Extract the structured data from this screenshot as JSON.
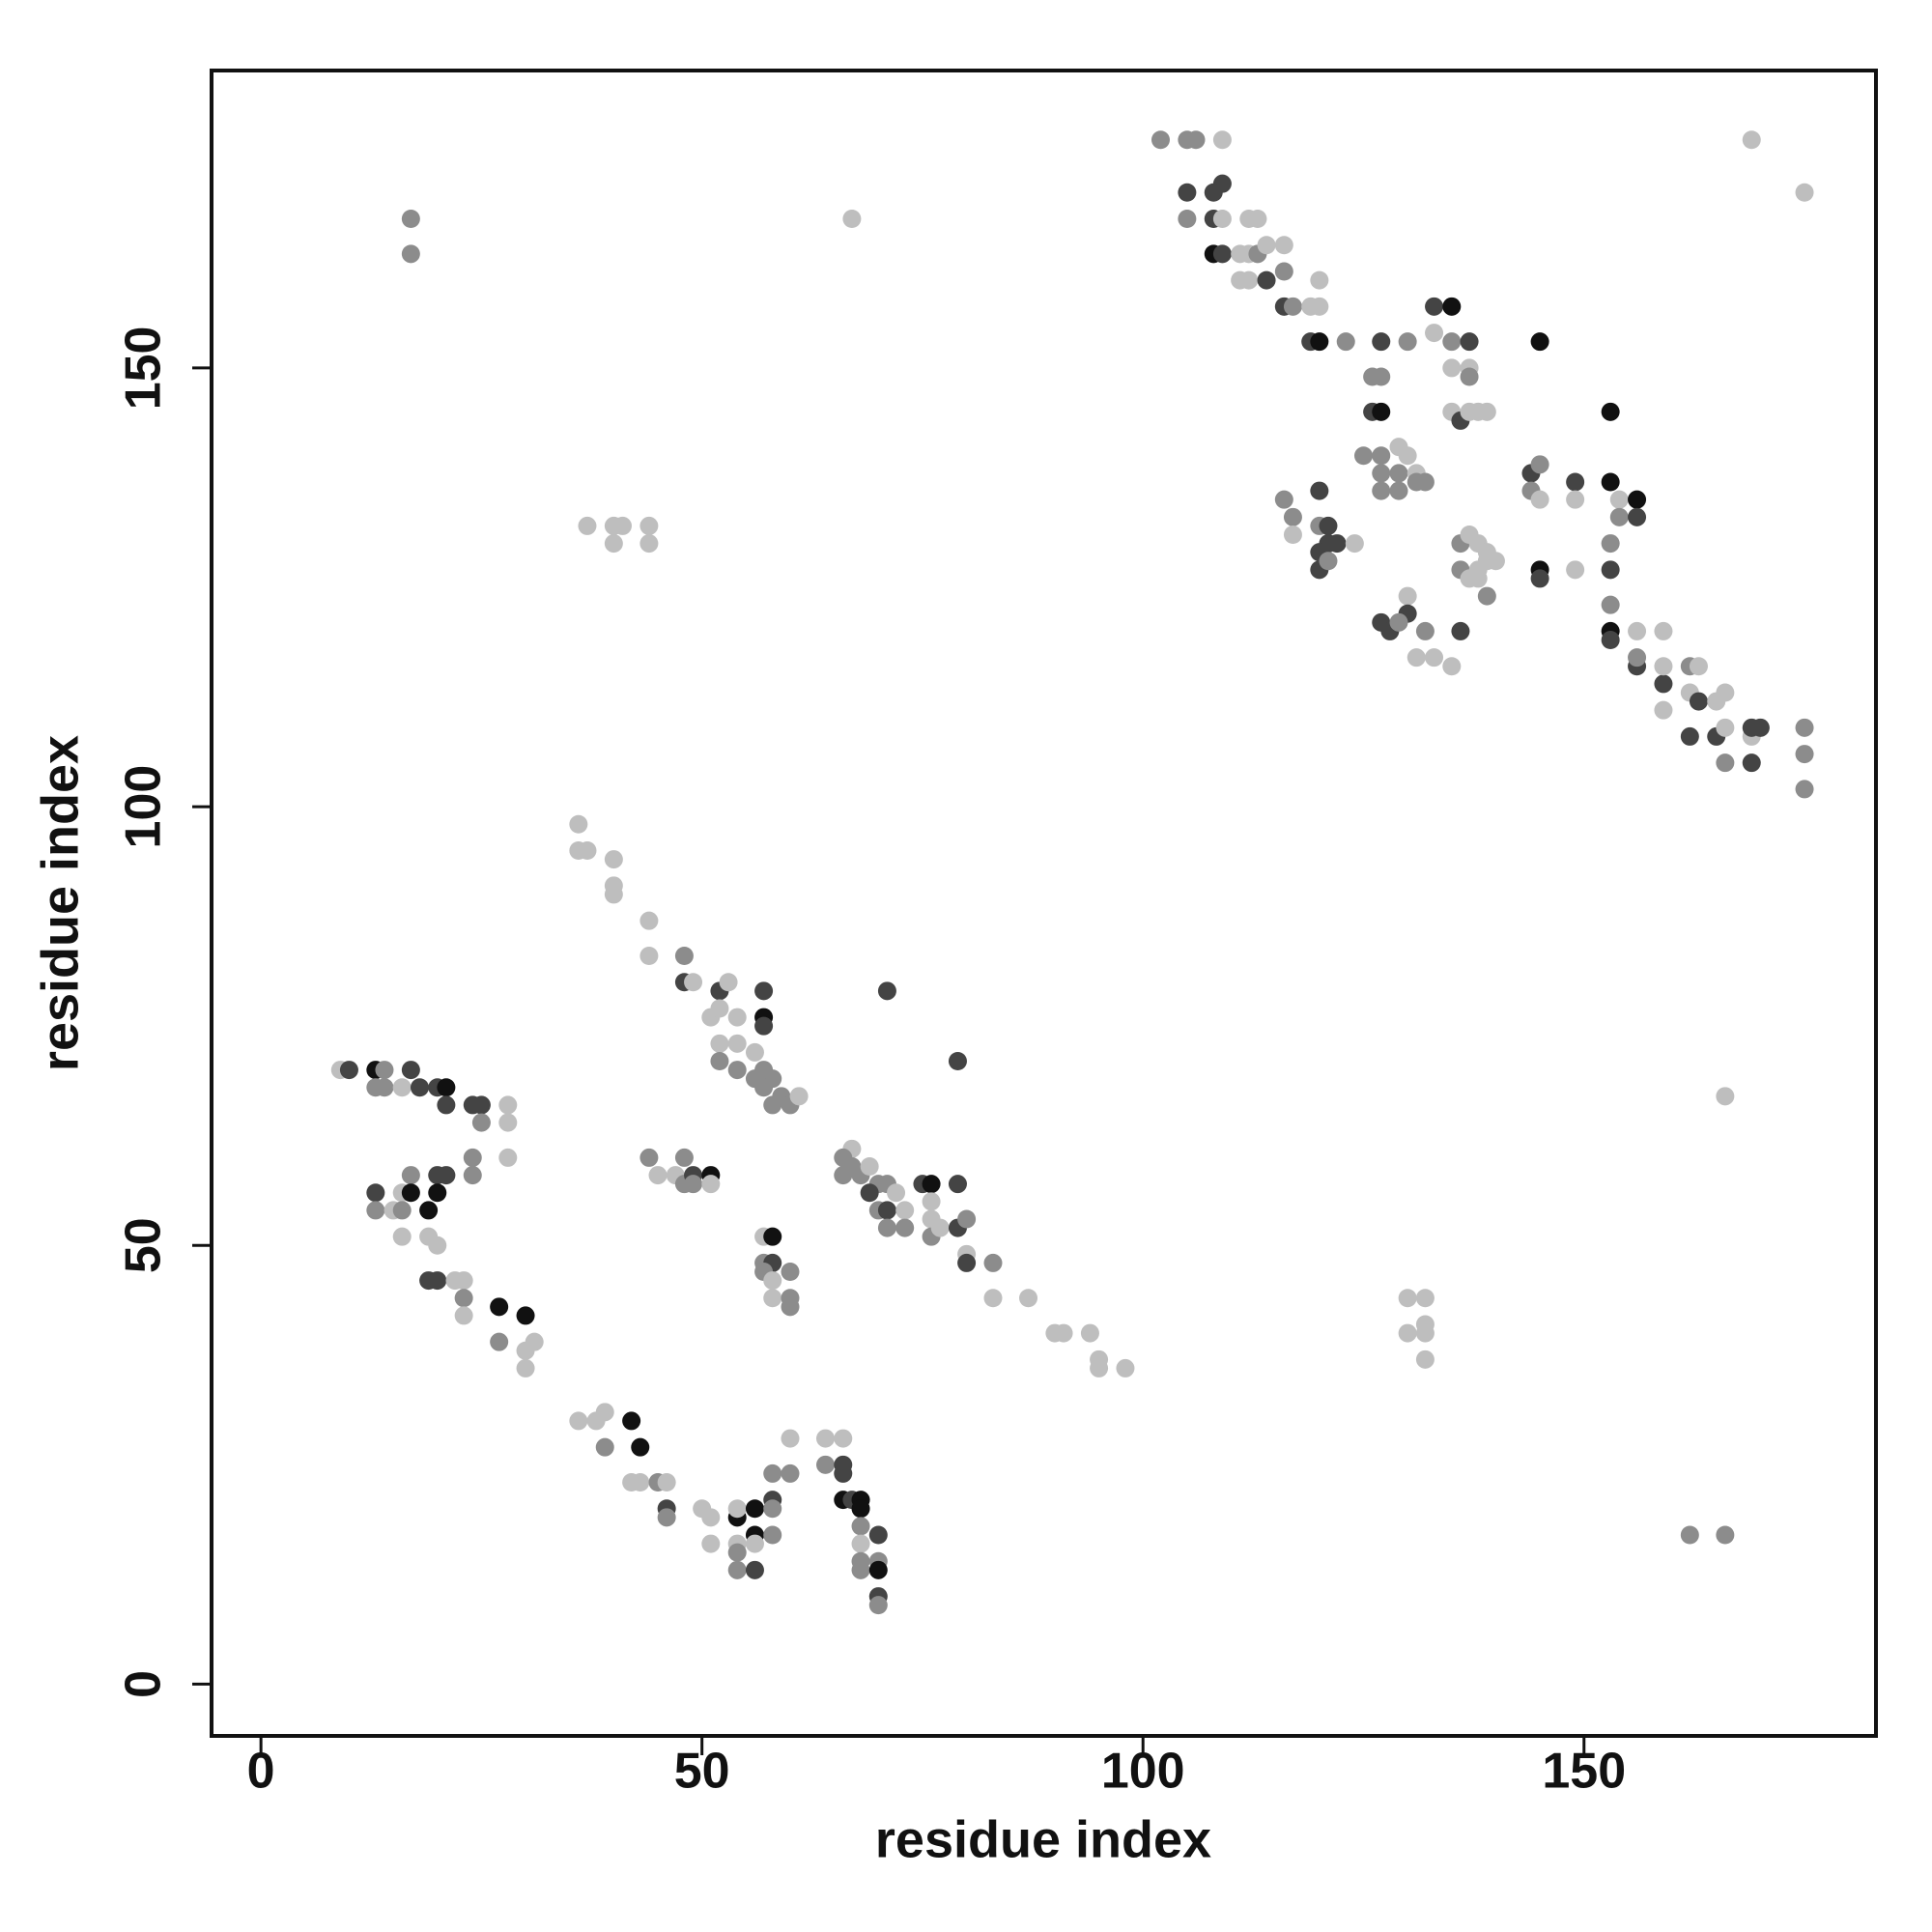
{
  "chart_data": {
    "type": "scatter",
    "xlabel": "residue index",
    "ylabel": "residue index",
    "xlim": [
      -5.6,
      183.1
    ],
    "ylim": [
      -5.9,
      183.9
    ],
    "xticks": [
      0,
      50,
      100,
      150
    ],
    "yticks": [
      0,
      50,
      100,
      150
    ],
    "x": [
      102,
      105,
      106,
      109,
      105,
      109,
      108,
      105,
      108,
      109,
      108,
      109,
      112,
      113,
      111,
      112,
      113,
      114,
      116,
      111,
      112,
      114,
      116,
      116,
      117,
      120,
      119,
      120,
      119,
      120,
      123,
      127,
      130,
      133,
      135,
      133,
      135,
      137,
      145,
      135,
      137,
      126,
      127,
      126,
      127,
      137,
      135,
      136,
      137,
      138,
      139,
      153,
      125,
      127,
      129,
      130,
      127,
      129,
      131,
      127,
      129,
      131,
      132,
      120,
      116,
      117,
      117,
      120,
      121,
      121,
      122,
      124,
      120,
      120,
      121,
      144,
      145,
      144,
      145,
      149,
      149,
      153,
      154,
      156,
      154,
      156,
      153,
      136,
      137,
      138,
      139,
      136,
      138,
      139,
      140,
      137,
      139,
      138,
      145,
      145,
      149,
      153,
      153,
      130,
      130,
      127,
      128,
      129,
      132,
      136,
      131,
      133,
      135,
      153,
      153,
      156,
      156,
      156,
      159,
      159,
      159,
      162,
      159,
      162,
      163,
      163,
      165,
      166,
      162,
      165,
      166,
      166,
      169,
      169,
      170,
      169,
      175,
      175,
      175,
      169,
      175,
      17,
      17,
      67,
      37,
      40,
      41,
      40,
      44,
      44,
      36,
      36,
      37,
      40,
      40,
      40,
      44,
      44,
      48,
      48,
      49,
      52,
      53,
      57,
      51,
      52,
      54,
      57,
      57,
      52,
      54,
      52,
      54,
      56,
      57,
      56,
      58,
      57,
      59,
      58,
      60,
      61,
      71,
      79,
      28,
      28,
      28,
      24,
      24,
      25,
      25,
      9,
      10,
      13,
      14,
      17,
      13,
      14,
      16,
      18,
      20,
      21,
      21,
      24,
      13,
      13,
      15,
      16,
      16,
      17,
      17,
      19,
      20,
      21,
      20,
      16,
      19,
      20,
      19,
      20,
      22,
      23,
      23,
      23,
      27,
      27,
      30,
      30,
      31,
      30,
      44,
      45,
      48,
      47,
      48,
      49,
      49,
      51,
      51,
      57,
      58,
      57,
      58,
      57,
      58,
      58,
      60,
      60,
      60,
      67,
      66,
      67,
      68,
      66,
      69,
      70,
      69,
      71,
      72,
      70,
      71,
      73,
      73,
      71,
      75,
      76,
      76,
      76,
      76,
      77,
      79,
      79,
      80,
      80,
      80,
      83,
      83,
      87,
      90,
      91,
      94,
      95,
      95,
      98,
      130,
      132,
      130,
      132,
      132,
      132,
      166,
      162,
      166,
      36,
      38,
      39,
      39,
      42,
      43,
      42,
      43,
      45,
      46,
      46,
      46,
      50,
      51,
      51,
      54,
      54,
      54,
      54,
      54,
      56,
      56,
      56,
      56,
      58,
      58,
      58,
      58,
      60,
      60,
      64,
      64,
      66,
      66,
      66,
      66,
      67,
      68,
      68,
      68,
      68,
      68,
      68,
      70,
      70,
      70,
      70,
      70
    ],
    "y": [
      176,
      176,
      176,
      176,
      170,
      171,
      170,
      167,
      167,
      167,
      163,
      163,
      167,
      167,
      163,
      163,
      163,
      164,
      164,
      160,
      160,
      160,
      161,
      157,
      157,
      160,
      157,
      157,
      153,
      153,
      153,
      153,
      153,
      157,
      157,
      154,
      153,
      153,
      153,
      150,
      150,
      149,
      149,
      145,
      145,
      149,
      145,
      144,
      145,
      145,
      145,
      145,
      140,
      140,
      141,
      140,
      138,
      138,
      138,
      136,
      136,
      137,
      137,
      136,
      135,
      133,
      131,
      132,
      132,
      130,
      130,
      130,
      129,
      127,
      128,
      138,
      139,
      136,
      135,
      137,
      135,
      137,
      135,
      135,
      133,
      133,
      130,
      130,
      131,
      130,
      129,
      127,
      127,
      128,
      128,
      126,
      124,
      126,
      127,
      126,
      127,
      127,
      123,
      124,
      122,
      121,
      120,
      121,
      120,
      120,
      117,
      117,
      116,
      120,
      119,
      120,
      116,
      117,
      120,
      114,
      116,
      116,
      111,
      113,
      116,
      112,
      112,
      113,
      108,
      108,
      109,
      105,
      108,
      109,
      109,
      105,
      109,
      106,
      102,
      176,
      170,
      167,
      163,
      167,
      132,
      132,
      132,
      130,
      132,
      130,
      98,
      95,
      95,
      94,
      91,
      90,
      87,
      83,
      83,
      80,
      80,
      79,
      80,
      79,
      76,
      77,
      76,
      76,
      75,
      73,
      73,
      71,
      70,
      72,
      70,
      69,
      69,
      68,
      67,
      66,
      66,
      67,
      79,
      71,
      66,
      64,
      60,
      60,
      58,
      66,
      64,
      70,
      70,
      70,
      70,
      70,
      68,
      68,
      68,
      68,
      68,
      68,
      66,
      66,
      56,
      54,
      54,
      56,
      54,
      58,
      56,
      54,
      58,
      58,
      56,
      51,
      51,
      50,
      46,
      46,
      46,
      46,
      44,
      42,
      43,
      39,
      42,
      38,
      39,
      36,
      60,
      58,
      60,
      58,
      57,
      58,
      57,
      58,
      57,
      51,
      51,
      48,
      48,
      47,
      46,
      44,
      47,
      44,
      43,
      61,
      60,
      59,
      58,
      58,
      59,
      57,
      56,
      57,
      56,
      54,
      54,
      54,
      52,
      52,
      57,
      57,
      55,
      53,
      51,
      52,
      57,
      52,
      53,
      49,
      48,
      48,
      44,
      44,
      40,
      40,
      40,
      37,
      36,
      36,
      44,
      44,
      40,
      41,
      40,
      37,
      67,
      17,
      17,
      30,
      30,
      31,
      27,
      30,
      27,
      23,
      23,
      23,
      23,
      20,
      19,
      20,
      19,
      16,
      19,
      20,
      16,
      15,
      13,
      20,
      17,
      16,
      13,
      21,
      20,
      17,
      24,
      28,
      24,
      28,
      25,
      28,
      25,
      24,
      21,
      21,
      21,
      20,
      18,
      16,
      14,
      13,
      17,
      14,
      13,
      10,
      9
    ],
    "colors": [
      "#8c8c8c",
      "#8c8c8c",
      "#8c8c8c",
      "#bebebe",
      "#444444",
      "#444444",
      "#444444",
      "#8c8c8c",
      "#444444",
      "#bebebe",
      "#111111",
      "#444444",
      "#bebebe",
      "#bebebe",
      "#bebebe",
      "#bebebe",
      "#8c8c8c",
      "#bebebe",
      "#bebebe",
      "#bebebe",
      "#bebebe",
      "#444444",
      "#8c8c8c",
      "#444444",
      "#8c8c8c",
      "#bebebe",
      "#bebebe",
      "#bebebe",
      "#444444",
      "#111111",
      "#8c8c8c",
      "#444444",
      "#8c8c8c",
      "#444444",
      "#111111",
      "#bebebe",
      "#8c8c8c",
      "#444444",
      "#111111",
      "#bebebe",
      "#bebebe",
      "#8c8c8c",
      "#8c8c8c",
      "#444444",
      "#111111",
      "#8c8c8c",
      "#bebebe",
      "#444444",
      "#bebebe",
      "#bebebe",
      "#bebebe",
      "#111111",
      "#8c8c8c",
      "#8c8c8c",
      "#bebebe",
      "#bebebe",
      "#8c8c8c",
      "#8c8c8c",
      "#bebebe",
      "#8c8c8c",
      "#8c8c8c",
      "#8c8c8c",
      "#8c8c8c",
      "#444444",
      "#8c8c8c",
      "#8c8c8c",
      "#bebebe",
      "#8c8c8c",
      "#444444",
      "#444444",
      "#444444",
      "#bebebe",
      "#444444",
      "#444444",
      "#8c8c8c",
      "#444444",
      "#8c8c8c",
      "#8c8c8c",
      "#bebebe",
      "#444444",
      "#bebebe",
      "#111111",
      "#bebebe",
      "#111111",
      "#8c8c8c",
      "#444444",
      "#8c8c8c",
      "#8c8c8c",
      "#bebebe",
      "#bebebe",
      "#bebebe",
      "#8c8c8c",
      "#bebebe",
      "#bebebe",
      "#bebebe",
      "#bebebe",
      "#8c8c8c",
      "#bebebe",
      "#111111",
      "#444444",
      "#bebebe",
      "#444444",
      "#8c8c8c",
      "#bebebe",
      "#444444",
      "#444444",
      "#444444",
      "#8c8c8c",
      "#8c8c8c",
      "#444444",
      "#bebebe",
      "#bebebe",
      "#bebebe",
      "#111111",
      "#444444",
      "#bebebe",
      "#444444",
      "#8c8c8c",
      "#bebebe",
      "#444444",
      "#bebebe",
      "#8c8c8c",
      "#bebebe",
      "#bebebe",
      "#bebebe",
      "#444444",
      "#bebebe",
      "#bebebe",
      "#444444",
      "#444444",
      "#bebebe",
      "#8c8c8c",
      "#bebebe",
      "#444444",
      "#444444",
      "#444444",
      "#8c8c8c",
      "#8c8c8c",
      "#8c8c8c",
      "#bebebe",
      "#bebebe",
      "#8c8c8c",
      "#8c8c8c",
      "#bebebe",
      "#bebebe",
      "#bebebe",
      "#bebebe",
      "#bebebe",
      "#bebebe",
      "#bebebe",
      "#bebebe",
      "#bebebe",
      "#bebebe",
      "#bebebe",
      "#bebebe",
      "#bebebe",
      "#bebebe",
      "#bebebe",
      "#8c8c8c",
      "#444444",
      "#bebebe",
      "#444444",
      "#bebebe",
      "#444444",
      "#bebebe",
      "#bebebe",
      "#bebebe",
      "#111111",
      "#444444",
      "#bebebe",
      "#bebebe",
      "#8c8c8c",
      "#8c8c8c",
      "#bebebe",
      "#8c8c8c",
      "#8c8c8c",
      "#8c8c8c",
      "#8c8c8c",
      "#8c8c8c",
      "#8c8c8c",
      "#8c8c8c",
      "#bebebe",
      "#444444",
      "#444444",
      "#bebebe",
      "#bebebe",
      "#bebebe",
      "#8c8c8c",
      "#8c8c8c",
      "#444444",
      "#8c8c8c",
      "#bebebe",
      "#444444",
      "#111111",
      "#8c8c8c",
      "#444444",
      "#8c8c8c",
      "#8c8c8c",
      "#bebebe",
      "#444444",
      "#444444",
      "#111111",
      "#444444",
      "#444444",
      "#444444",
      "#8c8c8c",
      "#bebebe",
      "#bebebe",
      "#8c8c8c",
      "#8c8c8c",
      "#111111",
      "#111111",
      "#444444",
      "#444444",
      "#111111",
      "#bebebe",
      "#bebebe",
      "#bebebe",
      "#444444",
      "#444444",
      "#bebebe",
      "#bebebe",
      "#8c8c8c",
      "#bebebe",
      "#111111",
      "#8c8c8c",
      "#111111",
      "#bebebe",
      "#bebebe",
      "#bebebe",
      "#8c8c8c",
      "#bebebe",
      "#8c8c8c",
      "#bebebe",
      "#8c8c8c",
      "#444444",
      "#8c8c8c",
      "#111111",
      "#bebebe",
      "#bebebe",
      "#111111",
      "#8c8c8c",
      "#444444",
      "#8c8c8c",
      "#bebebe",
      "#bebebe",
      "#8c8c8c",
      "#8c8c8c",
      "#8c8c8c",
      "#bebebe",
      "#8c8c8c",
      "#8c8c8c",
      "#8c8c8c",
      "#8c8c8c",
      "#bebebe",
      "#8c8c8c",
      "#444444",
      "#8c8c8c",
      "#bebebe",
      "#8c8c8c",
      "#444444",
      "#bebebe",
      "#8c8c8c",
      "#8c8c8c",
      "#444444",
      "#111111",
      "#bebebe",
      "#bebebe",
      "#8c8c8c",
      "#bebebe",
      "#444444",
      "#444444",
      "#8c8c8c",
      "#bebebe",
      "#444444",
      "#8c8c8c",
      "#bebebe",
      "#bebebe",
      "#bebebe",
      "#bebebe",
      "#bebebe",
      "#bebebe",
      "#bebebe",
      "#bebebe",
      "#bebebe",
      "#bebebe",
      "#bebebe",
      "#bebebe",
      "#bebebe",
      "#bebebe",
      "#bebebe",
      "#8c8c8c",
      "#8c8c8c",
      "#bebebe",
      "#bebebe",
      "#bebebe",
      "#8c8c8c",
      "#111111",
      "#111111",
      "#bebebe",
      "#bebebe",
      "#8c8c8c",
      "#bebebe",
      "#444444",
      "#8c8c8c",
      "#bebebe",
      "#bebebe",
      "#bebebe",
      "#111111",
      "#bebebe",
      "#bebebe",
      "#8c8c8c",
      "#8c8c8c",
      "#111111",
      "#111111",
      "#bebebe",
      "#444444",
      "#444444",
      "#8c8c8c",
      "#8c8c8c",
      "#8c8c8c",
      "#bebebe",
      "#8c8c8c",
      "#bebebe",
      "#8c8c8c",
      "#bebebe",
      "#444444",
      "#444444",
      "#111111",
      "#444444",
      "#111111",
      "#111111",
      "#8c8c8c",
      "#bebebe",
      "#8c8c8c",
      "#8c8c8c",
      "#444444",
      "#8c8c8c",
      "#111111",
      "#444444",
      "#8c8c8c"
    ]
  }
}
